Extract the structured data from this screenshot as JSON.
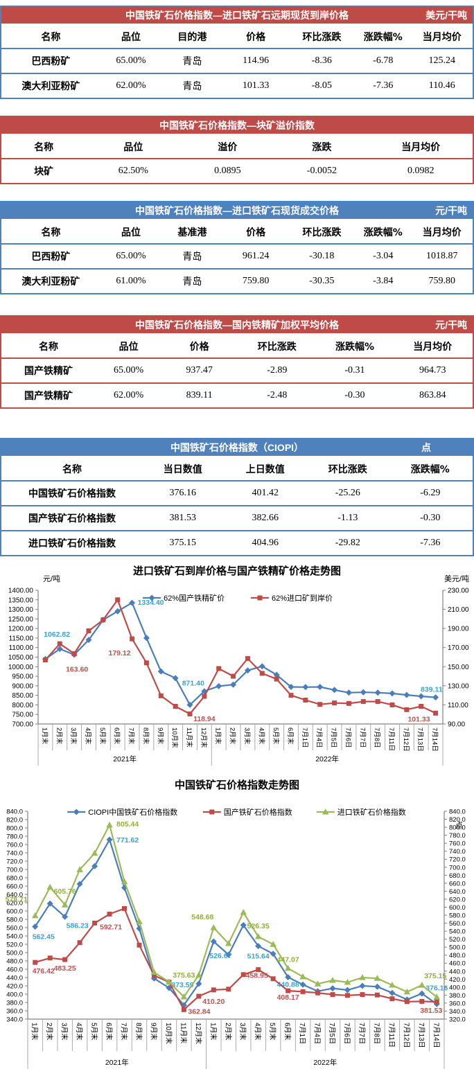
{
  "tables": [
    {
      "title": "中国铁矿石价格指数—进口铁矿石远期现货到岸价格",
      "unit": "美元/干吨",
      "headers": [
        "名称",
        "品位",
        "目的港",
        "价格",
        "环比涨跌",
        "涨跌幅%",
        "当月均价"
      ],
      "rows": [
        [
          "巴西粉矿",
          "65.00%",
          "青岛",
          "114.96",
          "-8.36",
          "-6.78",
          "125.24"
        ],
        [
          "澳大利亚粉矿",
          "62.00%",
          "青岛",
          "101.33",
          "-8.05",
          "-7.36",
          "110.46"
        ]
      ]
    },
    {
      "title": "中国铁矿石价格指数—块矿溢价指数",
      "unit": "",
      "headers": [
        "名称",
        "品位",
        "溢价",
        "涨跌",
        "当月均价"
      ],
      "rows": [
        [
          "块矿",
          "62.50%",
          "0.0895",
          "-0.0052",
          "0.0982"
        ]
      ]
    },
    {
      "title": "中国铁矿石价格指数—进口铁矿石现货成交价格",
      "unit": "元/干吨",
      "headers": [
        "名称",
        "品位",
        "基准港",
        "价格",
        "环比涨跌",
        "涨跌幅%",
        "当月均价"
      ],
      "rows": [
        [
          "巴西粉矿",
          "65.00%",
          "青岛",
          "961.24",
          "-30.18",
          "-3.04",
          "1018.87"
        ],
        [
          "澳大利亚粉矿",
          "61.00%",
          "青岛",
          "759.80",
          "-30.35",
          "-3.84",
          "759.80"
        ]
      ]
    },
    {
      "title": "中国铁矿石价格指数—国内铁精矿加权平均价格",
      "unit": "元/干吨",
      "headers": [
        "名称",
        "品位",
        "价格",
        "环比涨跌",
        "涨跌幅%",
        "当月均价"
      ],
      "rows": [
        [
          "国产铁精矿",
          "65.00%",
          "937.47",
          "-2.89",
          "-0.31",
          "964.73"
        ],
        [
          "国产铁精矿",
          "62.00%",
          "839.11",
          "-2.48",
          "-0.30",
          "863.84"
        ]
      ]
    },
    {
      "title": "中国铁矿石价格指数（CIOPI）",
      "unit": "点",
      "headers": [
        "名称",
        "当日数值",
        "上日数值",
        "环比涨跌",
        "涨跌幅%"
      ],
      "rows": [
        [
          "中国铁矿石价格指数",
          "376.16",
          "401.42",
          "-25.26",
          "-6.29"
        ],
        [
          "国产铁矿石价格指数",
          "381.53",
          "382.66",
          "-1.13",
          "-0.30"
        ],
        [
          "进口铁矿石价格指数",
          "375.15",
          "404.96",
          "-29.82",
          "-7.36"
        ]
      ]
    }
  ],
  "chart_data": [
    {
      "type": "line",
      "title": "进口铁矿石到岸价格与国产铁精矿价格走势图",
      "left_axis": {
        "unit": "元/吨",
        "min": 700,
        "max": 1400,
        "step": 50,
        "decimals": 2
      },
      "right_axis": {
        "unit": "美元/吨",
        "min": 90,
        "max": 230,
        "step": 20,
        "decimals": 2
      },
      "categories": [
        "1月末",
        "2月末",
        "3月末",
        "4月末",
        "5月末",
        "6月末",
        "7月末",
        "8月末",
        "9月末",
        "10月末",
        "11月末",
        "12月末",
        "1月末",
        "2月末",
        "3月末",
        "4月末",
        "5月末",
        "6月末",
        "7月1日",
        "7月4日",
        "7月5日",
        "7月6日",
        "7月7日",
        "7月8日",
        "7月11日",
        "7月12日",
        "7月13日",
        "7月14日"
      ],
      "year_groups": [
        {
          "label": "2021年",
          "count": 12
        },
        {
          "label": "2022年",
          "count": 16
        }
      ],
      "grid": false,
      "legend_position": "top",
      "labeled_indices": [
        2,
        6,
        11,
        27
      ],
      "series": [
        {
          "name": "62%国产铁精矿价",
          "axis": "left",
          "color": "#4A7EBB",
          "label_color": "#35A3DC",
          "marker": "diamond",
          "values": [
            1040,
            1093,
            1062.82,
            1140,
            1245,
            1290,
            1334.4,
            1150,
            975,
            940,
            800,
            871.4,
            898,
            906,
            980,
            1002,
            957,
            894,
            893,
            894,
            878,
            864,
            866,
            864,
            860,
            852,
            845,
            839.11
          ]
        },
        {
          "name": "62%进口矿到岸价",
          "axis": "right",
          "color": "#BE4B48",
          "label_color": "#C0504D",
          "marker": "square",
          "values": [
            157,
            174,
            163.6,
            187.5,
            199,
            220,
            179.12,
            154,
            119.5,
            108.5,
            100.5,
            118.94,
            148,
            140,
            158.5,
            143,
            137,
            120,
            115,
            110.5,
            112,
            111.5,
            113.5,
            113.5,
            110,
            105,
            108.5,
            101.33
          ]
        }
      ]
    },
    {
      "type": "line",
      "title": "中国铁矿石价格指数走势图",
      "left_axis": {
        "unit": "",
        "min": 340,
        "max": 840,
        "step": 20,
        "decimals": 1
      },
      "right_axis": {
        "unit": "点",
        "min": 320,
        "max": 840,
        "step": 20,
        "decimals": 1
      },
      "categories": [
        "1月末",
        "2月末",
        "3月末",
        "4月末",
        "5月末",
        "6月末",
        "7月末",
        "8月末",
        "9月末",
        "10月末",
        "11月末",
        "12月末",
        "1月末",
        "2月末",
        "3月末",
        "4月末",
        "5月末",
        "6月末",
        "7月1日",
        "7月4日",
        "7月5日",
        "7月6日",
        "7月7日",
        "7月8日",
        "7月11日",
        "7月12日",
        "7月13日",
        "7月14日"
      ],
      "year_groups": [
        {
          "label": "2021年",
          "count": 12
        },
        {
          "label": "2022年",
          "count": 16
        }
      ],
      "grid": false,
      "legend_position": "top",
      "labeled_indices": [
        0,
        2,
        5,
        10,
        12,
        15,
        17,
        27
      ],
      "series": [
        {
          "name": "CIOPI中国铁矿石价格指数",
          "axis": "left",
          "color": "#4A7EBB",
          "label_color": "#35A3DC",
          "marker": "diamond",
          "values": [
            562.45,
            618,
            586.23,
            665,
            708,
            771.62,
            656,
            558,
            438,
            415,
            373.59,
            425,
            526.67,
            495,
            566,
            515.64,
            497,
            440.88,
            423,
            407,
            414,
            410,
            420,
            418,
            403,
            387,
            401.42,
            376.16
          ]
        },
        {
          "name": "国产铁矿石价格指数",
          "axis": "left",
          "color": "#BE4B48",
          "label_color": "#C0504D",
          "marker": "square",
          "values": [
            476.42,
            487,
            483.25,
            524,
            571,
            592.71,
            606,
            518,
            445,
            429,
            362.84,
            395,
            410.2,
            412,
            447,
            458.95,
            437,
            408.17,
            406,
            403,
            399,
            397,
            399,
            398,
            389,
            382,
            382.66,
            381.53
          ]
        },
        {
          "name": "进口铁矿石价格指数",
          "axis": "right",
          "color": "#9BBB59",
          "label_color": "#8FAF3C",
          "marker": "triangle",
          "values": [
            578.71,
            650,
            605.76,
            694,
            735,
            805.44,
            664,
            564,
            437,
            413,
            375.63,
            430,
            548.68,
            509,
            587,
            526.35,
            507,
            447.07,
            426,
            408,
            417,
            412,
            424,
            422,
            405,
            388,
            404.96,
            375.15
          ]
        }
      ]
    }
  ]
}
